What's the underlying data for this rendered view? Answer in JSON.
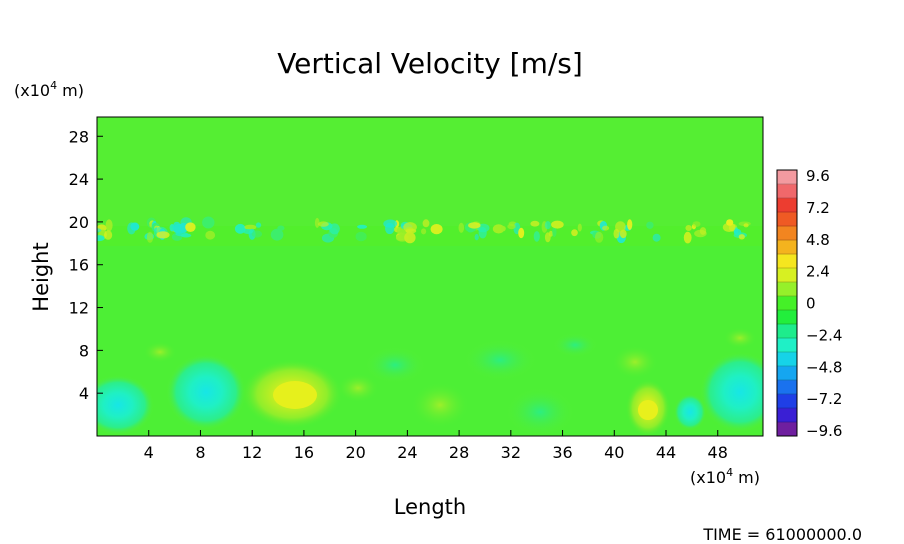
{
  "chart_data": {
    "type": "heatmap",
    "title": "Vertical Velocity [m/s]",
    "xlabel": "Length",
    "ylabel": "Height",
    "x_unit": "(x10",
    "x_unit_exp": "4",
    "x_unit_tail": " m)",
    "y_unit": "(x10",
    "y_unit_exp": "4",
    "y_unit_tail": " m)",
    "xlim": [
      0,
      51.5
    ],
    "ylim": [
      0,
      29.8
    ],
    "x_ticks": [
      4,
      8,
      12,
      16,
      20,
      24,
      28,
      32,
      36,
      40,
      44,
      48
    ],
    "y_ticks": [
      4,
      8,
      12,
      16,
      20,
      24,
      28
    ],
    "colorbar": {
      "range": [
        -9.6,
        9.6
      ],
      "tick_labels": [
        "9.6",
        "7.2",
        "4.8",
        "2.4",
        "0",
        "−2.4",
        "−4.8",
        "−7.2",
        "−9.6"
      ],
      "colors": [
        "#6f1f9f",
        "#3a1fd4",
        "#1f3fe6",
        "#1a72ee",
        "#15a6f0",
        "#16d3e8",
        "#1ff0c6",
        "#1eec8c",
        "#22ee3c",
        "#45f028",
        "#96f02a",
        "#d7f022",
        "#f5e61f",
        "#f4b31e",
        "#f28520",
        "#ef5a24",
        "#ec3d30",
        "#f0686b",
        "#f39aa0"
      ]
    },
    "background_value": 0,
    "features": [
      {
        "x": 15,
        "y": 3.8,
        "value": 3.5
      },
      {
        "x": 42.5,
        "y": 2.5,
        "value": 4.5
      },
      {
        "x": 2,
        "y": 3,
        "value": -3.2
      },
      {
        "x": 8.5,
        "y": 3.8,
        "value": -2.8
      },
      {
        "x": 49.5,
        "y": 4.5,
        "value": -3.0
      },
      {
        "x": 45,
        "y": 2.2,
        "value": -3.2
      }
    ],
    "time_label": "TIME = 61000000.0"
  }
}
